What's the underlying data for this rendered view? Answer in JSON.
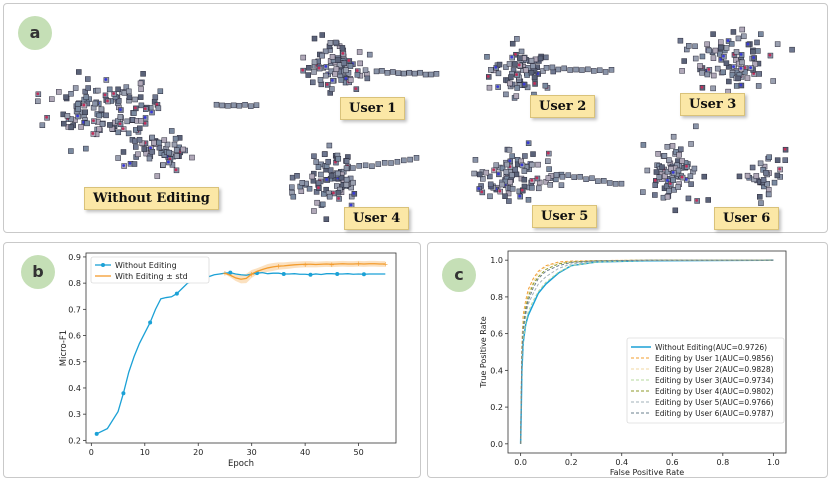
{
  "panel_a": {
    "badge": "a",
    "labels": [
      "Without Editing",
      "User 1",
      "User 2",
      "User 3",
      "User 4",
      "User 5",
      "User 6"
    ]
  },
  "panel_b": {
    "badge": "b"
  },
  "panel_c": {
    "badge": "c"
  },
  "colors": {
    "badge_bg": "#c5dfb6",
    "label_bg": "#fbe7a6",
    "without_editing": "#1ba1d6",
    "with_editing": "#f39c2e"
  },
  "chart_data": [
    {
      "type": "line",
      "xlabel": "Epoch",
      "ylabel": "Micro-F1",
      "xlim": [
        -1,
        57
      ],
      "ylim": [
        0.19,
        0.915
      ],
      "xticks": [
        0,
        10,
        20,
        30,
        40,
        50
      ],
      "yticks": [
        0.2,
        0.3,
        0.4,
        0.5,
        0.6,
        0.7,
        0.8,
        0.9
      ],
      "legend_position": "top-left",
      "series": [
        {
          "name": "Without Editing",
          "color": "#1ba1d6",
          "x": [
            1,
            3,
            5,
            6,
            7,
            8,
            9,
            10,
            11,
            12,
            13,
            14,
            15,
            16,
            17,
            18,
            19,
            20,
            21,
            22,
            23,
            24,
            25,
            26,
            27,
            28,
            29,
            30,
            31,
            32,
            33,
            34,
            35,
            36,
            37,
            38,
            39,
            40,
            41,
            42,
            43,
            44,
            45,
            46,
            47,
            48,
            49,
            50,
            51,
            52,
            53,
            54,
            55
          ],
          "y": [
            0.225,
            0.245,
            0.31,
            0.38,
            0.46,
            0.52,
            0.57,
            0.61,
            0.65,
            0.7,
            0.74,
            0.745,
            0.748,
            0.76,
            0.78,
            0.8,
            0.808,
            0.81,
            0.815,
            0.825,
            0.832,
            0.835,
            0.838,
            0.84,
            0.835,
            0.832,
            0.83,
            0.835,
            0.838,
            0.84,
            0.836,
            0.838,
            0.838,
            0.835,
            0.835,
            0.836,
            0.834,
            0.834,
            0.832,
            0.835,
            0.833,
            0.836,
            0.836,
            0.835,
            0.835,
            0.836,
            0.834,
            0.835,
            0.834,
            0.835,
            0.835,
            0.835,
            0.835
          ],
          "markers_at": [
            1,
            6,
            11,
            16,
            21,
            26,
            31,
            36,
            41,
            46,
            51
          ]
        },
        {
          "name": "With Editing ± std",
          "color": "#f39c2e",
          "x": [
            25,
            26,
            27,
            28,
            29,
            30,
            31,
            32,
            33,
            34,
            35,
            36,
            37,
            38,
            39,
            40,
            41,
            42,
            43,
            44,
            45,
            46,
            47,
            48,
            49,
            50,
            51,
            52,
            53,
            54,
            55
          ],
          "y": [
            0.838,
            0.83,
            0.82,
            0.815,
            0.818,
            0.835,
            0.845,
            0.852,
            0.858,
            0.862,
            0.865,
            0.866,
            0.868,
            0.87,
            0.871,
            0.872,
            0.872,
            0.871,
            0.872,
            0.873,
            0.872,
            0.873,
            0.874,
            0.873,
            0.873,
            0.874,
            0.873,
            0.874,
            0.874,
            0.873,
            0.873
          ],
          "std": [
            0.004,
            0.008,
            0.012,
            0.016,
            0.018,
            0.015,
            0.012,
            0.013,
            0.015,
            0.015,
            0.014,
            0.013,
            0.013,
            0.012,
            0.012,
            0.012,
            0.012,
            0.011,
            0.011,
            0.011,
            0.011,
            0.011,
            0.011,
            0.011,
            0.011,
            0.011,
            0.011,
            0.011,
            0.011,
            0.011,
            0.011
          ]
        }
      ]
    },
    {
      "type": "line",
      "xlabel": "False Positive Rate",
      "ylabel": "True Positive Rate",
      "xlim": [
        -0.05,
        1.05
      ],
      "ylim": [
        -0.05,
        1.05
      ],
      "xticks": [
        0.0,
        0.2,
        0.4,
        0.6,
        0.8,
        1.0
      ],
      "yticks": [
        0.0,
        0.2,
        0.4,
        0.6,
        0.8,
        1.0
      ],
      "legend_position": "bottom-right",
      "series": [
        {
          "name": "Without Editing(AUC=0.9726)",
          "color": "#1ba1d6",
          "style": "solid",
          "x": [
            0,
            0.005,
            0.01,
            0.02,
            0.03,
            0.05,
            0.07,
            0.1,
            0.15,
            0.2,
            0.3,
            0.5,
            1.0
          ],
          "y": [
            0,
            0.4,
            0.55,
            0.65,
            0.7,
            0.76,
            0.82,
            0.87,
            0.93,
            0.97,
            0.99,
            0.997,
            1.0
          ]
        },
        {
          "name": "Editing by User 1(AUC=0.9856)",
          "color": "#f39c2e",
          "style": "dashed",
          "x": [
            0,
            0.005,
            0.01,
            0.02,
            0.03,
            0.05,
            0.07,
            0.1,
            0.15,
            0.2,
            0.3,
            0.5,
            1.0
          ],
          "y": [
            0,
            0.55,
            0.7,
            0.78,
            0.84,
            0.9,
            0.94,
            0.97,
            0.99,
            0.995,
            0.998,
            1.0,
            1.0
          ]
        },
        {
          "name": "Editing by User 2(AUC=0.9828)",
          "color": "#f1d7a0",
          "style": "dashed",
          "x": [
            0,
            0.005,
            0.01,
            0.02,
            0.03,
            0.05,
            0.07,
            0.1,
            0.15,
            0.2,
            0.3,
            0.5,
            1.0
          ],
          "y": [
            0,
            0.52,
            0.67,
            0.76,
            0.82,
            0.88,
            0.93,
            0.965,
            0.985,
            0.993,
            0.998,
            1.0,
            1.0
          ]
        },
        {
          "name": "Editing by User 3(AUC=0.9734)",
          "color": "#b5d99c",
          "style": "dashed",
          "x": [
            0,
            0.005,
            0.01,
            0.02,
            0.03,
            0.05,
            0.07,
            0.1,
            0.15,
            0.2,
            0.3,
            0.5,
            1.0
          ],
          "y": [
            0,
            0.42,
            0.56,
            0.66,
            0.72,
            0.78,
            0.83,
            0.88,
            0.935,
            0.97,
            0.99,
            0.998,
            1.0
          ]
        },
        {
          "name": "Editing by User 4(AUC=0.9802)",
          "color": "#8c9a2a",
          "style": "dashed",
          "x": [
            0,
            0.005,
            0.01,
            0.02,
            0.03,
            0.05,
            0.07,
            0.1,
            0.15,
            0.2,
            0.3,
            0.5,
            1.0
          ],
          "y": [
            0,
            0.5,
            0.64,
            0.74,
            0.8,
            0.87,
            0.91,
            0.95,
            0.98,
            0.99,
            0.997,
            1.0,
            1.0
          ]
        },
        {
          "name": "Editing by User 5(AUC=0.9766)",
          "color": "#a0b0b8",
          "style": "dashed",
          "x": [
            0,
            0.005,
            0.01,
            0.02,
            0.03,
            0.05,
            0.07,
            0.1,
            0.15,
            0.2,
            0.3,
            0.5,
            1.0
          ],
          "y": [
            0,
            0.45,
            0.6,
            0.7,
            0.76,
            0.82,
            0.87,
            0.91,
            0.955,
            0.98,
            0.995,
            0.999,
            1.0
          ]
        },
        {
          "name": "Editing by User 6(AUC=0.9787)",
          "color": "#6a7f8c",
          "style": "dashed",
          "x": [
            0,
            0.005,
            0.01,
            0.02,
            0.03,
            0.05,
            0.07,
            0.1,
            0.15,
            0.2,
            0.3,
            0.5,
            1.0
          ],
          "y": [
            0,
            0.48,
            0.62,
            0.72,
            0.78,
            0.85,
            0.9,
            0.94,
            0.97,
            0.988,
            0.996,
            1.0,
            1.0
          ]
        }
      ]
    }
  ]
}
